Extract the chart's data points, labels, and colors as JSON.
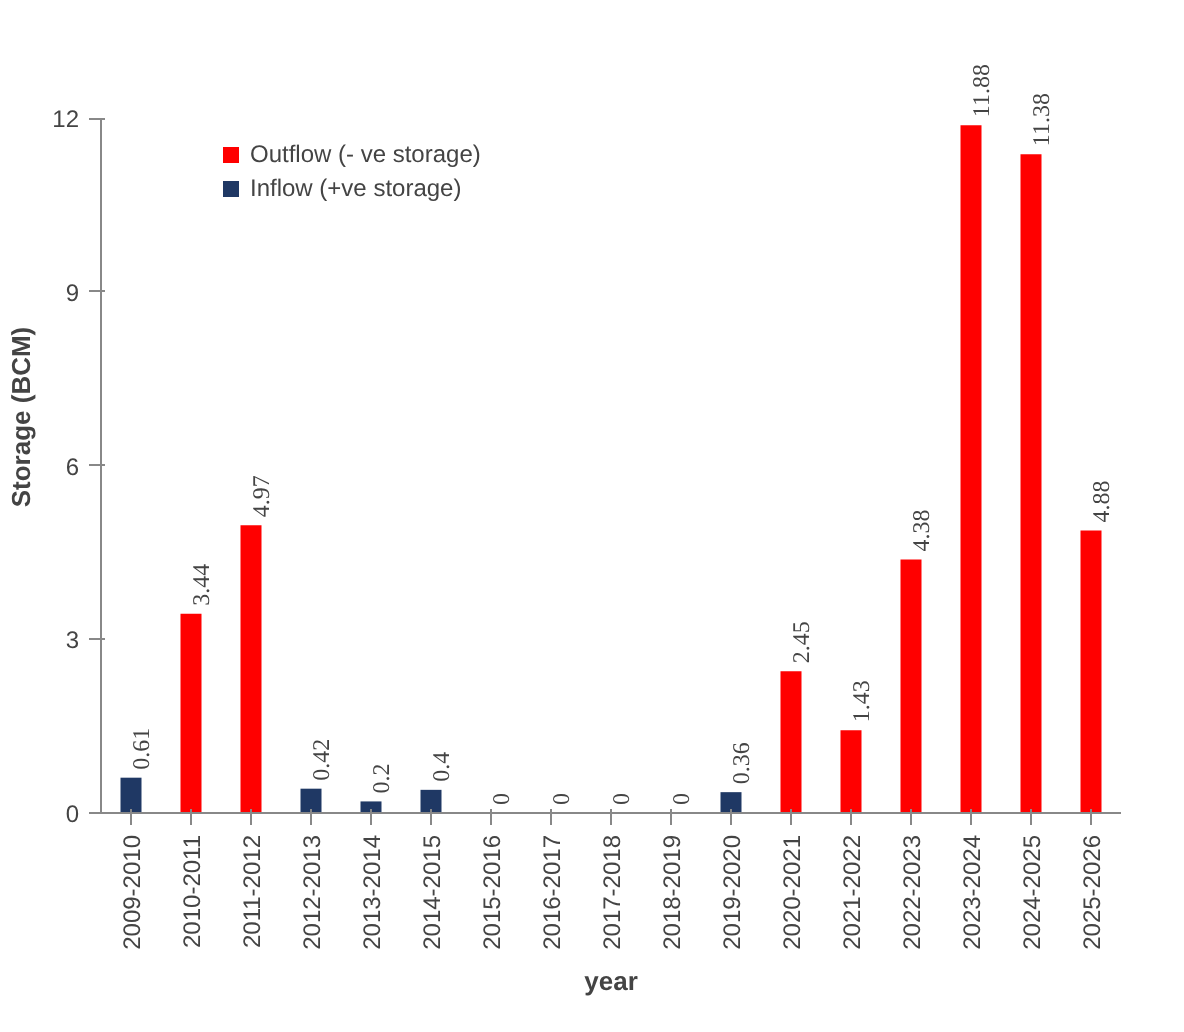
{
  "chart_data": {
    "type": "bar",
    "xlabel": "year",
    "ylabel": "Storage (BCM)",
    "categories": [
      "2009-2010",
      "2010-2011",
      "2011-2012",
      "2012-2013",
      "2013-2014",
      "2014-2015",
      "2015-2016",
      "2016-2017",
      "2017-2018",
      "2018-2019",
      "2019-2020",
      "2020-2021",
      "2021-2022",
      "2022-2023",
      "2023-2024",
      "2024-2025",
      "2025-2026"
    ],
    "series": [
      {
        "name": "Outflow (- ve storage)",
        "color": "#ff0000",
        "values": [
          null,
          3.44,
          4.97,
          null,
          null,
          null,
          0,
          0,
          0,
          0,
          null,
          2.45,
          1.43,
          4.38,
          11.88,
          11.38,
          4.88
        ]
      },
      {
        "name": "Inflow (+ve storage)",
        "color": "#1f3864",
        "values": [
          0.61,
          null,
          null,
          0.42,
          0.2,
          0.4,
          null,
          null,
          null,
          null,
          0.36,
          null,
          null,
          null,
          null,
          null,
          null
        ]
      }
    ],
    "ylim": [
      0,
      12
    ],
    "yticks": [
      0,
      3,
      6,
      9,
      12
    ],
    "grid": false,
    "legend": "top left",
    "data_labels": true
  }
}
